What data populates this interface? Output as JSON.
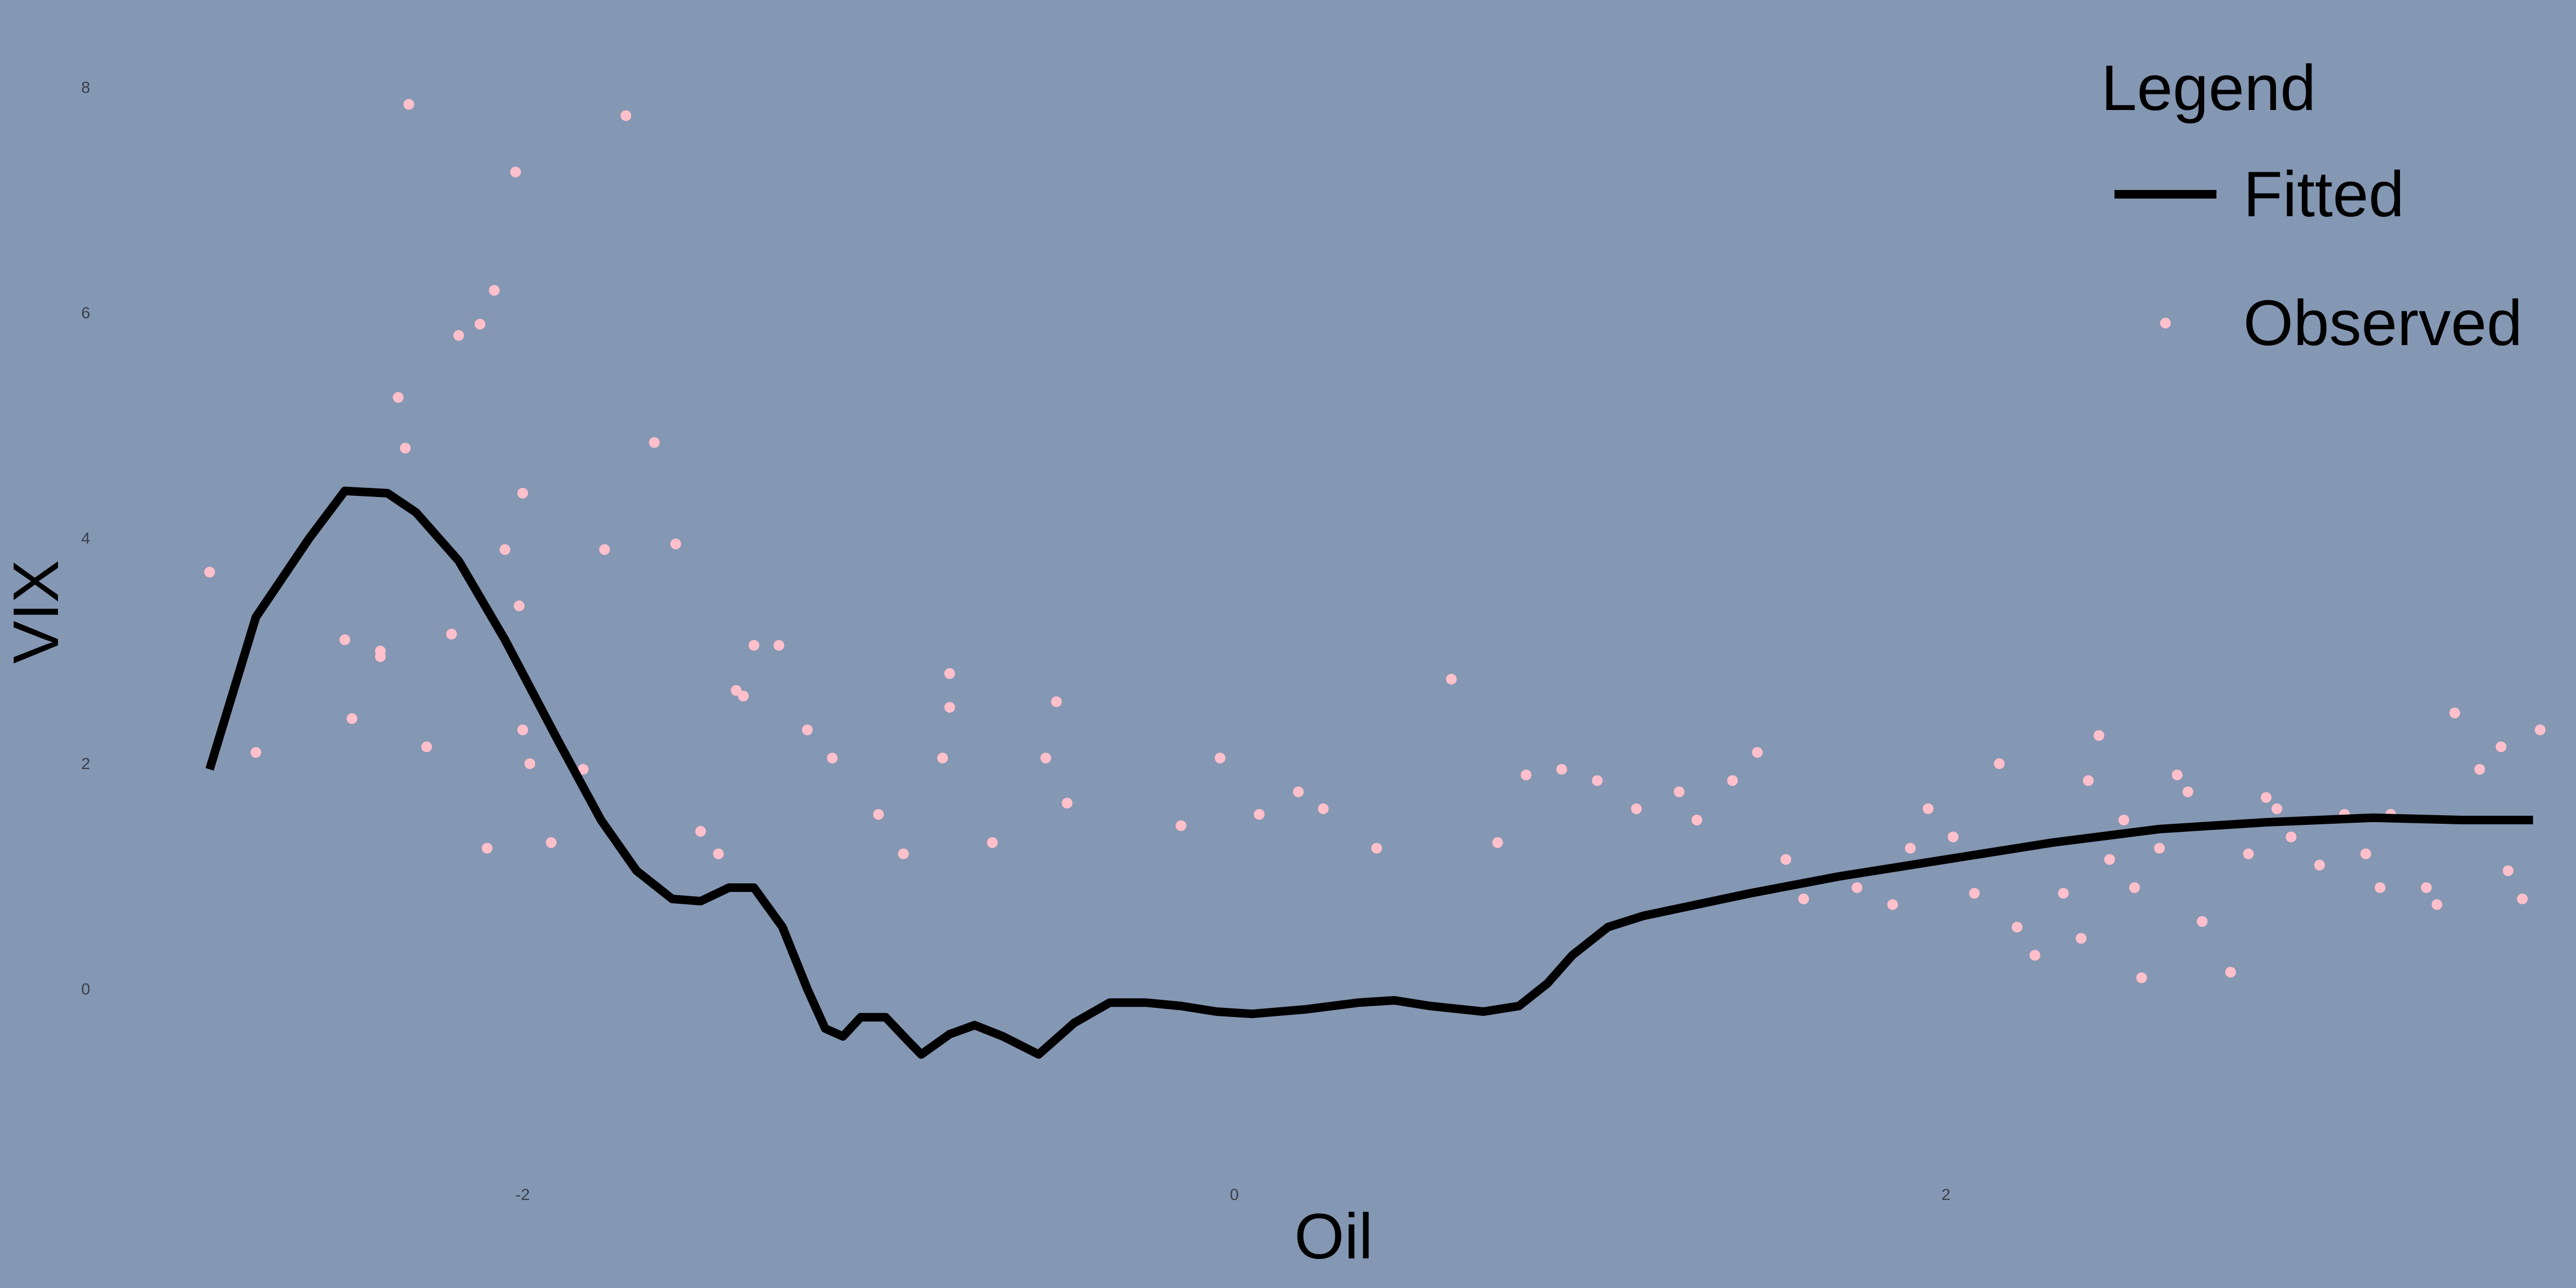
{
  "chart_data": {
    "type": "scatter",
    "title": "",
    "xlabel": "Oil",
    "ylabel": "VIX",
    "xlim": [
      -3.1,
      3.6
    ],
    "ylim": [
      -1.7,
      8.5
    ],
    "x_ticks": [
      -2,
      0,
      2
    ],
    "y_ticks": [
      0,
      2,
      4,
      6,
      8
    ],
    "grid": false,
    "legend": {
      "title": "Legend",
      "position": "top-right",
      "entries": [
        {
          "label": "Fitted",
          "type": "line"
        },
        {
          "label": "Observed",
          "type": "point"
        }
      ]
    },
    "colors": {
      "background": "#8497b3",
      "observed": "#ffc0cb",
      "fitted": "#000000"
    },
    "series": [
      {
        "name": "Observed",
        "type": "scatter",
        "points": [
          [
            -2.88,
            3.7
          ],
          [
            -2.75,
            2.1
          ],
          [
            -2.5,
            3.1
          ],
          [
            -2.48,
            2.4
          ],
          [
            -2.4,
            3.0
          ],
          [
            -2.4,
            2.95
          ],
          [
            -2.35,
            5.25
          ],
          [
            -2.33,
            4.8
          ],
          [
            -2.32,
            7.85
          ],
          [
            -2.27,
            2.15
          ],
          [
            -2.2,
            3.15
          ],
          [
            -2.18,
            5.8
          ],
          [
            -2.12,
            5.9
          ],
          [
            -2.1,
            1.25
          ],
          [
            -2.08,
            6.2
          ],
          [
            -2.05,
            3.9
          ],
          [
            -2.02,
            7.25
          ],
          [
            -2.01,
            3.4
          ],
          [
            -2.0,
            4.4
          ],
          [
            -2.0,
            2.3
          ],
          [
            -1.98,
            2.0
          ],
          [
            -1.92,
            1.3
          ],
          [
            -1.83,
            1.95
          ],
          [
            -1.77,
            3.9
          ],
          [
            -1.71,
            7.75
          ],
          [
            -1.63,
            4.85
          ],
          [
            -1.57,
            3.95
          ],
          [
            -1.5,
            1.4
          ],
          [
            -1.45,
            1.2
          ],
          [
            -1.4,
            2.65
          ],
          [
            -1.38,
            2.6
          ],
          [
            -1.35,
            3.05
          ],
          [
            -1.28,
            3.05
          ],
          [
            -1.2,
            2.3
          ],
          [
            -1.13,
            2.05
          ],
          [
            -1.0,
            1.55
          ],
          [
            -0.93,
            1.2
          ],
          [
            -0.82,
            2.05
          ],
          [
            -0.8,
            2.8
          ],
          [
            -0.8,
            2.5
          ],
          [
            -0.68,
            1.3
          ],
          [
            -0.53,
            2.05
          ],
          [
            -0.5,
            2.55
          ],
          [
            -0.47,
            1.65
          ],
          [
            -0.15,
            1.45
          ],
          [
            -0.04,
            2.05
          ],
          [
            0.07,
            1.55
          ],
          [
            0.18,
            1.75
          ],
          [
            0.25,
            1.6
          ],
          [
            0.4,
            1.25
          ],
          [
            0.61,
            2.75
          ],
          [
            0.74,
            1.3
          ],
          [
            0.82,
            1.9
          ],
          [
            0.92,
            1.95
          ],
          [
            1.02,
            1.85
          ],
          [
            1.13,
            1.6
          ],
          [
            1.25,
            1.75
          ],
          [
            1.3,
            1.5
          ],
          [
            1.4,
            1.85
          ],
          [
            1.47,
            2.1
          ],
          [
            1.55,
            1.15
          ],
          [
            1.6,
            0.8
          ],
          [
            1.75,
            0.9
          ],
          [
            1.85,
            0.75
          ],
          [
            1.9,
            1.25
          ],
          [
            1.95,
            1.6
          ],
          [
            2.02,
            1.35
          ],
          [
            2.08,
            0.85
          ],
          [
            2.15,
            2.0
          ],
          [
            2.2,
            0.55
          ],
          [
            2.25,
            0.3
          ],
          [
            2.33,
            0.85
          ],
          [
            2.38,
            0.45
          ],
          [
            2.4,
            1.85
          ],
          [
            2.43,
            2.25
          ],
          [
            2.46,
            1.15
          ],
          [
            2.5,
            1.5
          ],
          [
            2.53,
            0.9
          ],
          [
            2.55,
            0.1
          ],
          [
            2.6,
            1.25
          ],
          [
            2.65,
            1.9
          ],
          [
            2.68,
            1.75
          ],
          [
            2.72,
            0.6
          ],
          [
            2.8,
            0.15
          ],
          [
            2.85,
            1.2
          ],
          [
            2.9,
            1.7
          ],
          [
            2.93,
            1.6
          ],
          [
            2.97,
            1.35
          ],
          [
            3.05,
            1.1
          ],
          [
            3.12,
            1.55
          ],
          [
            3.18,
            1.2
          ],
          [
            3.22,
            0.9
          ],
          [
            3.25,
            1.55
          ],
          [
            3.35,
            0.9
          ],
          [
            3.38,
            0.75
          ],
          [
            3.43,
            2.45
          ],
          [
            3.5,
            1.95
          ],
          [
            3.56,
            2.15
          ],
          [
            3.58,
            1.05
          ],
          [
            3.62,
            0.8
          ],
          [
            3.67,
            2.3
          ]
        ]
      },
      {
        "name": "Fitted",
        "type": "line",
        "x": [
          -2.88,
          -2.75,
          -2.6,
          -2.5,
          -2.38,
          -2.3,
          -2.18,
          -2.05,
          -1.9,
          -1.78,
          -1.68,
          -1.58,
          -1.5,
          -1.42,
          -1.35,
          -1.27,
          -1.2,
          -1.15,
          -1.1,
          -1.05,
          -0.98,
          -0.92,
          -0.88,
          -0.8,
          -0.73,
          -0.65,
          -0.55,
          -0.45,
          -0.35,
          -0.25,
          -0.15,
          -0.05,
          0.05,
          0.2,
          0.35,
          0.45,
          0.55,
          0.7,
          0.8,
          0.88,
          0.95,
          1.05,
          1.15,
          1.3,
          1.45,
          1.7,
          2.0,
          2.3,
          2.6,
          2.9,
          3.2,
          3.45,
          3.65
        ],
        "y": [
          1.95,
          3.3,
          4.0,
          4.42,
          4.4,
          4.23,
          3.8,
          3.1,
          2.2,
          1.5,
          1.05,
          0.8,
          0.78,
          0.9,
          0.9,
          0.55,
          0.0,
          -0.35,
          -0.42,
          -0.25,
          -0.25,
          -0.45,
          -0.58,
          -0.4,
          -0.32,
          -0.42,
          -0.58,
          -0.3,
          -0.12,
          -0.12,
          -0.15,
          -0.2,
          -0.22,
          -0.18,
          -0.12,
          -0.1,
          -0.15,
          -0.2,
          -0.15,
          0.05,
          0.3,
          0.55,
          0.65,
          0.75,
          0.85,
          1.0,
          1.15,
          1.3,
          1.42,
          1.48,
          1.52,
          1.5,
          1.5
        ]
      }
    ]
  }
}
